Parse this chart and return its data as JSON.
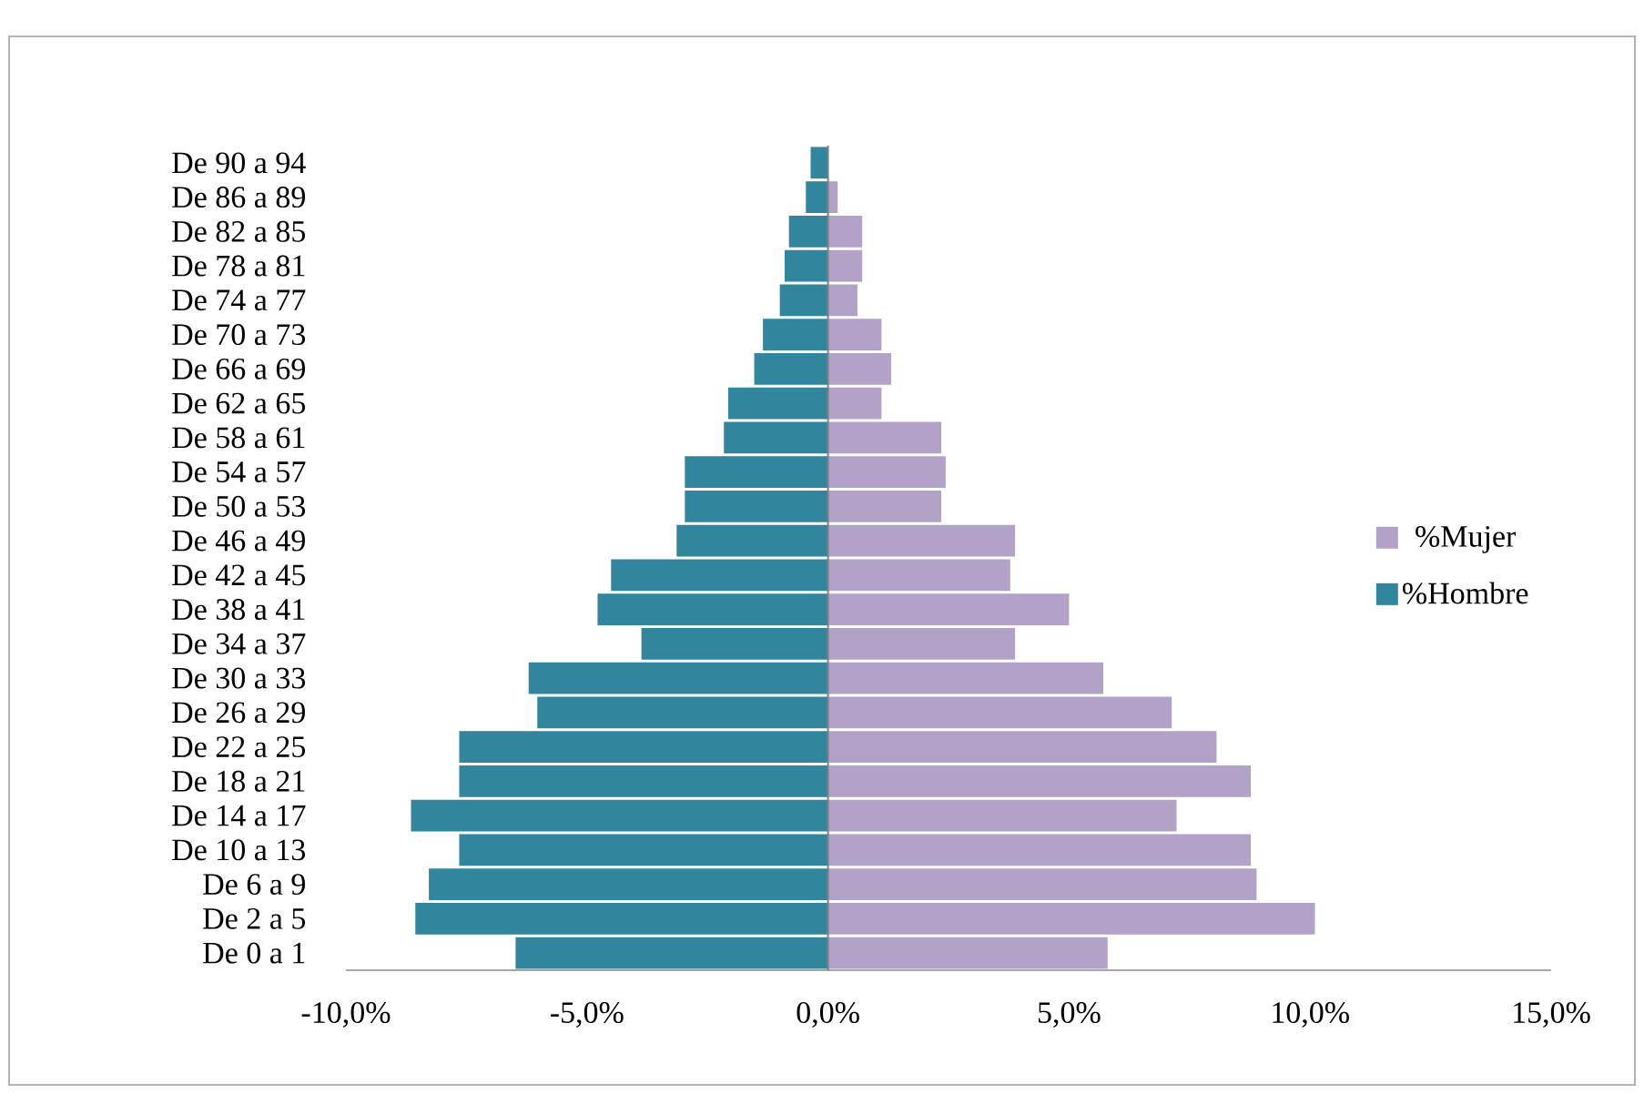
{
  "chart_data": {
    "type": "bar",
    "orientation": "horizontal",
    "stacked": true,
    "categories": [
      "De 90 a 94",
      "De 86 a 89",
      "De 82 a 85",
      "De 78 a 81",
      "De 74 a 77",
      "De 70 a 73",
      "De 66 a 69",
      "De 62 a 65",
      "De 58 a 61",
      "De 54 a 57",
      "De 50 a 53",
      "De 46 a 49",
      "De 42 a 45",
      "De 38 a 41",
      "De 34 a 37",
      "De 30 a 33",
      "De 26 a 29",
      "De 22 a 25",
      "De 18 a 21",
      "De 14 a 17",
      "De 10 a 13",
      "De 6 a 9",
      "De 2 a 5",
      "De 0 a 1"
    ],
    "series": [
      {
        "name": "%Mujer",
        "color": "#b3a2c7",
        "values": [
          0,
          0.2,
          0.71,
          0.71,
          0.61,
          1.11,
          1.31,
          1.11,
          2.35,
          2.44,
          2.35,
          3.88,
          3.78,
          5.0,
          3.88,
          5.71,
          7.13,
          8.06,
          8.77,
          7.23,
          8.77,
          8.89,
          10.1,
          5.8
        ]
      },
      {
        "name": "%Hombre",
        "color": "#31859c",
        "values": [
          -0.36,
          -0.46,
          -0.81,
          -0.9,
          -1.0,
          -1.35,
          -1.53,
          -2.07,
          -2.16,
          -2.97,
          -2.97,
          -3.14,
          -4.5,
          -4.78,
          -3.87,
          -6.21,
          -6.03,
          -7.65,
          -7.65,
          -8.65,
          -7.65,
          -8.28,
          -8.56,
          -6.48
        ]
      }
    ],
    "xlim": [
      -10,
      15
    ],
    "xticks": [
      {
        "value": -10,
        "label": "-10,0%"
      },
      {
        "value": -5,
        "label": "-5,0%"
      },
      {
        "value": 0,
        "label": "0,0%"
      },
      {
        "value": 5,
        "label": "5,0%"
      },
      {
        "value": 10,
        "label": "10,0%"
      },
      {
        "value": 15,
        "label": "15,0%"
      }
    ],
    "legend": "right"
  }
}
